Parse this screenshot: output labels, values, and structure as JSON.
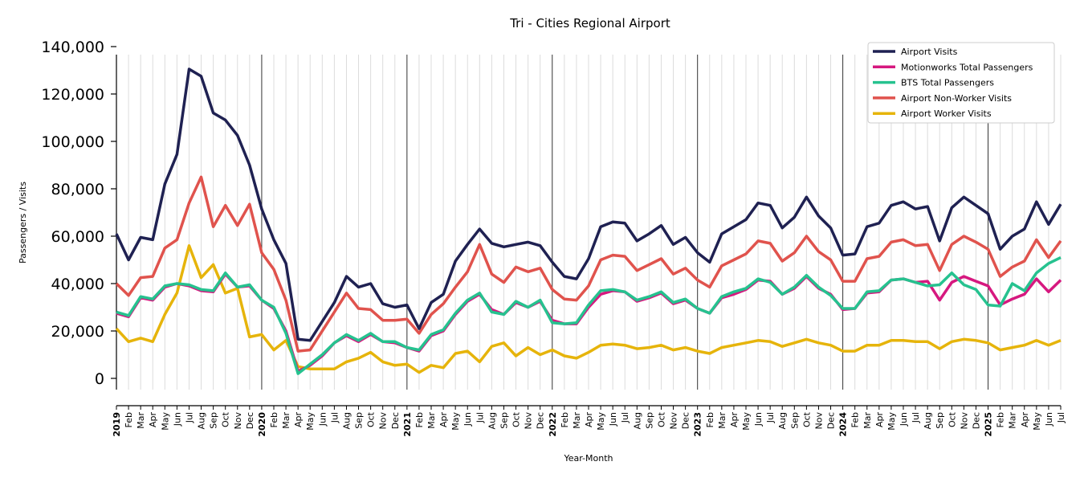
{
  "chart_data": {
    "type": "line",
    "title": "Tri - Cities Regional Airport",
    "xlabel": "Year-Month",
    "ylabel": "Passengers / Visits",
    "ylim": [
      -5000,
      140000
    ],
    "yticks": [
      0,
      20000,
      40000,
      60000,
      80000,
      100000,
      120000,
      140000
    ],
    "ytick_labels": [
      "0",
      "20,000",
      "40,000",
      "60,000",
      "80,000",
      "100,000",
      "120,000",
      "140,000"
    ],
    "grid": "vertical-monthly",
    "legend_position": "top-right",
    "x": [
      "2019",
      "Feb",
      "Mar",
      "Apr",
      "May",
      "Jun",
      "Jul",
      "Aug",
      "Sep",
      "Oct",
      "Nov",
      "Dec",
      "2020",
      "Feb",
      "Mar",
      "Apr",
      "May",
      "Jun",
      "Jul",
      "Aug",
      "Sep",
      "Oct",
      "Nov",
      "Dec",
      "2021",
      "Feb",
      "Mar",
      "Apr",
      "May",
      "Jun",
      "Jul",
      "Aug",
      "Sep",
      "Oct",
      "Nov",
      "Dec",
      "2022",
      "Feb",
      "Mar",
      "Apr",
      "May",
      "Jun",
      "Jul",
      "Aug",
      "Sep",
      "Oct",
      "Nov",
      "Dec",
      "2023",
      "Feb",
      "Mar",
      "Apr",
      "May",
      "Jun",
      "Jul",
      "Aug",
      "Sep",
      "Oct",
      "Nov",
      "Dec",
      "2024",
      "Feb",
      "Mar",
      "Apr",
      "May",
      "Jun",
      "Jul",
      "Aug",
      "Sep",
      "Oct",
      "Nov",
      "Dec",
      "2025",
      "Feb",
      "Mar",
      "Apr",
      "May",
      "Jun",
      "Jul"
    ],
    "series": [
      {
        "name": "Airport Visits",
        "color": "#1f2152",
        "values": [
          61000,
          50000,
          59500,
          58500,
          82000,
          94500,
          130500,
          127500,
          112000,
          109000,
          102500,
          90000,
          71500,
          58500,
          48500,
          16500,
          16000,
          24000,
          32000,
          43000,
          38500,
          40000,
          31500,
          30000,
          31000,
          21000,
          32000,
          35500,
          49500,
          56500,
          63000,
          57000,
          55500,
          56500,
          57500,
          56000,
          49000,
          43000,
          42000,
          50500,
          64000,
          66000,
          65500,
          58000,
          61000,
          64500,
          56500,
          59500,
          53000,
          49000,
          61000,
          64000,
          67000,
          74000,
          73000,
          63500,
          68000,
          76500,
          68500,
          63500,
          52000,
          52500,
          64000,
          65500,
          73000,
          74500,
          71500,
          72500,
          58000,
          72000,
          76500,
          73000,
          69500,
          54500,
          60000,
          63000,
          74500,
          65000,
          73500
        ]
      },
      {
        "name": "Motionworks Total Passengers",
        "color": "#d6187f",
        "values": [
          27500,
          26000,
          34000,
          33000,
          38500,
          40000,
          39000,
          37000,
          36500,
          44000,
          38500,
          39000,
          33000,
          29500,
          20000,
          3000,
          5500,
          9500,
          15000,
          18000,
          15500,
          18500,
          15500,
          15000,
          13000,
          11500,
          18000,
          20000,
          27000,
          32500,
          35500,
          29000,
          27000,
          32000,
          30000,
          32500,
          24500,
          23000,
          23000,
          30000,
          35500,
          37000,
          36500,
          32500,
          34000,
          36000,
          31500,
          33000,
          29500,
          27500,
          34000,
          35500,
          37500,
          41500,
          41000,
          35500,
          38000,
          43000,
          38000,
          35500,
          29000,
          29500,
          36000,
          36500,
          41500,
          42000,
          40500,
          41000,
          33000,
          40500,
          43000,
          41000,
          39000,
          31000,
          33500,
          35500,
          42000,
          36500,
          41500
        ]
      },
      {
        "name": "BTS Total Passengers",
        "color": "#26c28f",
        "values": [
          28000,
          26500,
          34500,
          33500,
          39000,
          40000,
          39500,
          37500,
          37000,
          44500,
          38500,
          39500,
          33000,
          30000,
          19000,
          2000,
          6000,
          10000,
          15000,
          18500,
          16000,
          19000,
          15500,
          15500,
          13000,
          12000,
          18500,
          20500,
          27500,
          33000,
          36000,
          28000,
          27000,
          32500,
          30000,
          33000,
          23500,
          23000,
          23500,
          31000,
          37000,
          37500,
          36500,
          33000,
          34500,
          36500,
          32000,
          33500,
          29500,
          27500,
          34500,
          36500,
          38000,
          42000,
          40500,
          35500,
          38500,
          43500,
          38500,
          35000,
          29500,
          29500,
          36500,
          37000,
          41500,
          42000,
          40500,
          39000,
          39500,
          44500,
          39500,
          37500,
          31000,
          30500,
          40000,
          37000,
          44500,
          48500,
          51000
        ]
      },
      {
        "name": "Airport Non-Worker Visits",
        "color": "#e0534d",
        "values": [
          40000,
          35000,
          42500,
          43000,
          55000,
          58500,
          74000,
          85000,
          64000,
          73000,
          64500,
          73500,
          53000,
          46000,
          33000,
          11500,
          12000,
          20000,
          28000,
          36000,
          29500,
          29000,
          24500,
          24500,
          25000,
          19000,
          27000,
          31500,
          38500,
          45000,
          56500,
          44000,
          40500,
          47000,
          45000,
          46500,
          37500,
          33500,
          33000,
          39000,
          50000,
          52000,
          51500,
          45500,
          48000,
          50500,
          44000,
          46500,
          41500,
          38500,
          47500,
          50000,
          52500,
          58000,
          57000,
          49500,
          53000,
          60000,
          53500,
          50000,
          41000,
          41000,
          50500,
          51500,
          57500,
          58500,
          56000,
          56500,
          45500,
          56500,
          60000,
          57500,
          54500,
          43000,
          47000,
          49500,
          58500,
          51000,
          58000
        ]
      },
      {
        "name": "Airport Worker Visits",
        "color": "#e6b40b",
        "values": [
          21000,
          15500,
          17000,
          15500,
          27000,
          36000,
          56000,
          42500,
          48000,
          36000,
          38000,
          17500,
          18500,
          12000,
          16000,
          5000,
          4000,
          4000,
          4000,
          7000,
          8500,
          11000,
          7000,
          5500,
          6000,
          2500,
          5500,
          4500,
          10500,
          11500,
          7000,
          13500,
          15000,
          9500,
          13000,
          10000,
          12000,
          9500,
          8500,
          11000,
          14000,
          14500,
          14000,
          12500,
          13000,
          14000,
          12000,
          13000,
          11500,
          10500,
          13000,
          14000,
          15000,
          16000,
          15500,
          13500,
          15000,
          16500,
          15000,
          14000,
          11500,
          11500,
          14000,
          14000,
          16000,
          16000,
          15500,
          15500,
          12500,
          15500,
          16500,
          16000,
          15000,
          12000,
          13000,
          14000,
          16000,
          14000,
          16000
        ]
      }
    ]
  }
}
